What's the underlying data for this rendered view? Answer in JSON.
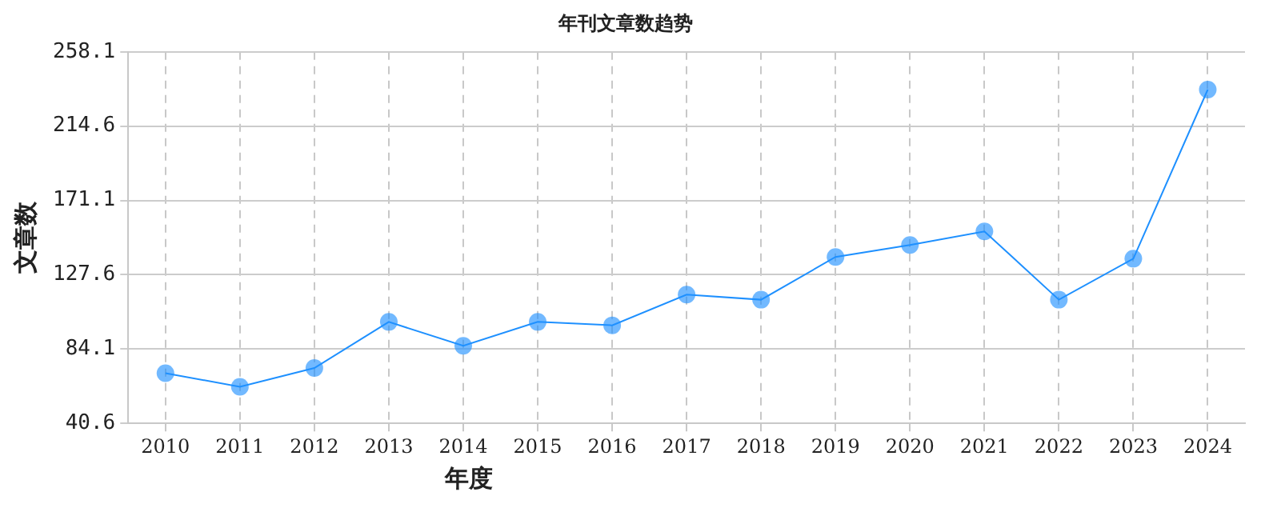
{
  "chart_data": {
    "type": "line",
    "title": "年刊文章数趋势",
    "xlabel": "年度",
    "ylabel": "文章数",
    "categories": [
      "2010",
      "2011",
      "2012",
      "2013",
      "2014",
      "2015",
      "2016",
      "2017",
      "2018",
      "2019",
      "2020",
      "2021",
      "2022",
      "2023",
      "2024"
    ],
    "series": [
      {
        "color": "#1e90ff",
        "values": [
          70,
          62,
          73,
          100,
          86,
          100,
          98,
          116,
          113,
          138,
          145,
          153,
          113,
          137,
          236
        ]
      }
    ],
    "ylim": [
      40.6,
      258.1
    ],
    "yticks": [
      {
        "value": 40.6,
        "label": "40.6"
      },
      {
        "value": 84.1,
        "label": "84.1"
      },
      {
        "value": 127.6,
        "label": "127.6"
      },
      {
        "value": 171.1,
        "label": "171.1"
      },
      {
        "value": 214.6,
        "label": "214.6"
      },
      {
        "value": 258.1,
        "label": "258.1"
      }
    ],
    "grid": true,
    "marker": "circle",
    "legend": false
  }
}
